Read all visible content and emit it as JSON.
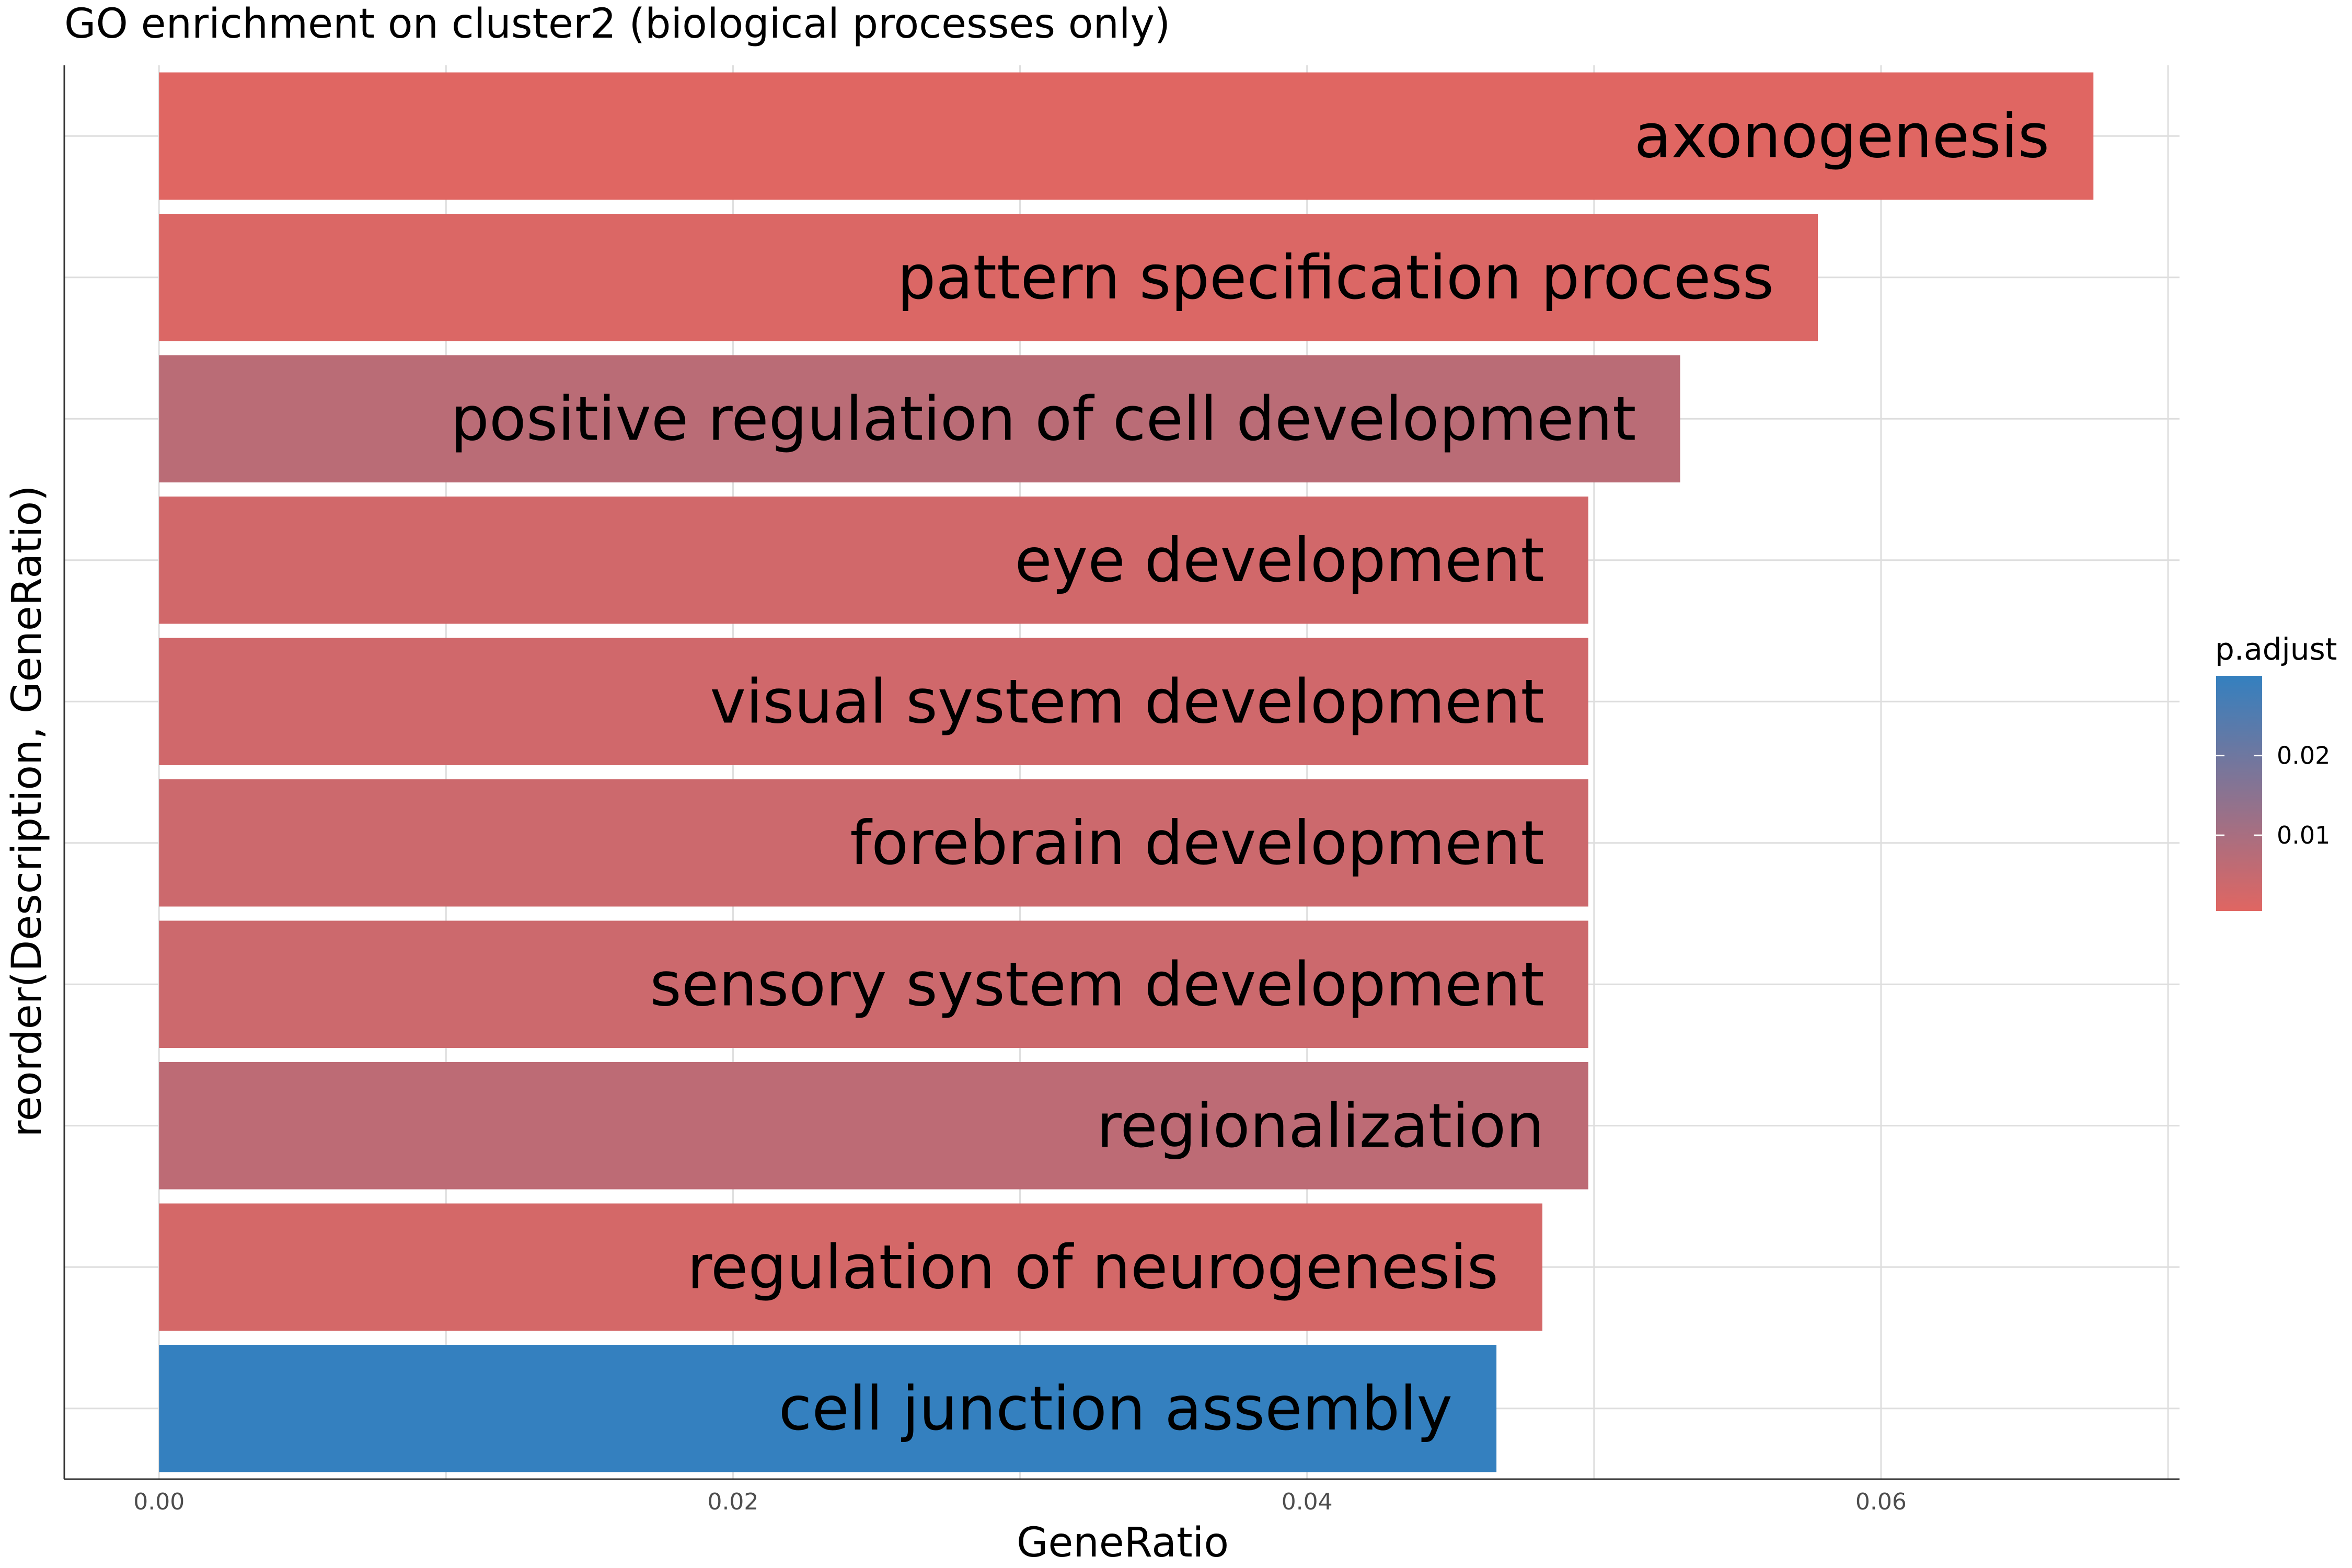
{
  "chart_data": {
    "type": "bar",
    "orientation": "horizontal",
    "title": "GO enrichment on cluster2 (biological processes only)",
    "xlabel": "GeneRatio",
    "ylabel": "reorder(Description, GeneRatio)",
    "xlim": [
      -0.0033,
      0.0704
    ],
    "xticks": [
      0.0,
      0.02,
      0.04,
      0.06
    ],
    "xtick_labels": [
      "0.00",
      "0.02",
      "0.04",
      "0.06"
    ],
    "grid": true,
    "categories": [
      "axonogenesis",
      "pattern specification process",
      "positive regulation of cell development",
      "eye development",
      "visual system development",
      "forebrain development",
      "sensory system development",
      "regionalization",
      "regulation of neurogenesis",
      "cell junction assembly"
    ],
    "values": [
      0.0674,
      0.0578,
      0.053,
      0.0498,
      0.0498,
      0.0498,
      0.0498,
      0.0498,
      0.0482,
      0.0466
    ],
    "fill_value": [
      0.0005,
      0.0014,
      0.007,
      0.003,
      0.0033,
      0.004,
      0.004,
      0.0065,
      0.0025,
      0.03
    ],
    "legend": {
      "title": "p.adjust",
      "placement": "right",
      "ticks": [
        0.01,
        0.02
      ],
      "tick_labels": [
        "0.01",
        "0.02"
      ],
      "range": [
        0.0005,
        0.03
      ],
      "low_color": "#e06662",
      "high_color": "#3480bf"
    }
  }
}
